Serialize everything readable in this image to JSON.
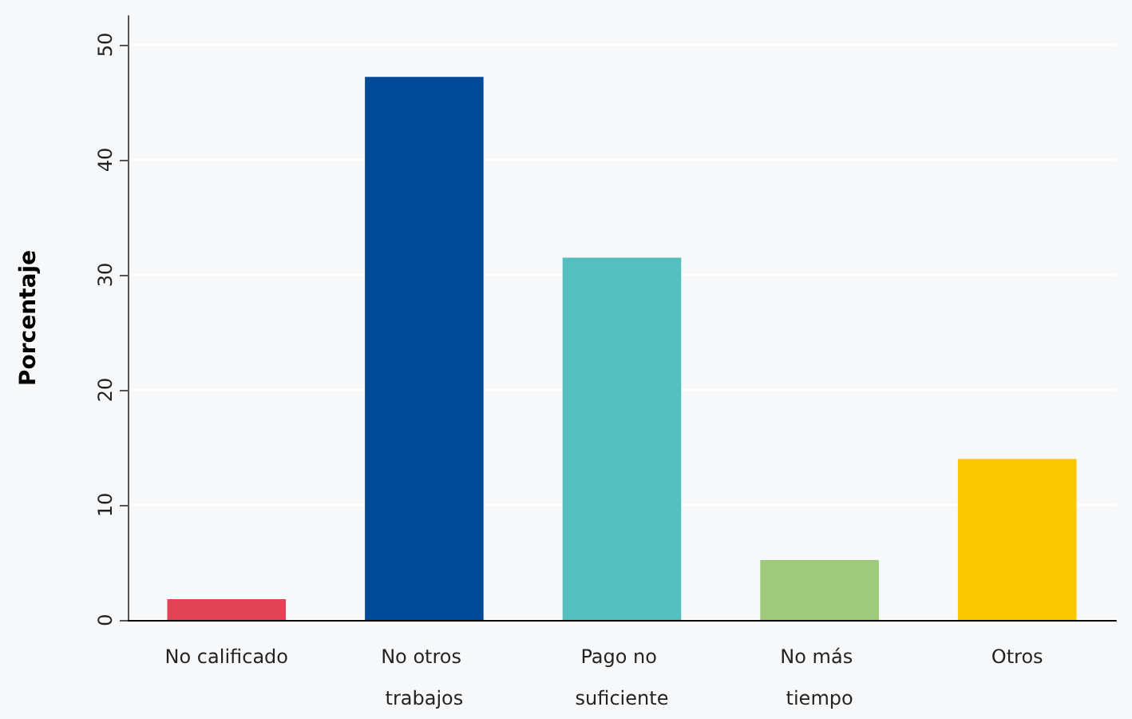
{
  "chart_data": {
    "type": "bar",
    "ylabel": "Porcentaje",
    "categories": [
      "No calificado",
      "No otros trabajos",
      "Pago no suficiente",
      "No más tiempo",
      "Otros"
    ],
    "values": [
      1.8,
      47.2,
      31.5,
      5.2,
      14.0
    ],
    "colors": [
      "#e24357",
      "#004a98",
      "#55bebe",
      "#a0ca7b",
      "#fbc800"
    ],
    "ylim": [
      0,
      52.5
    ],
    "yticks": [
      0,
      10,
      20,
      30,
      40,
      50
    ],
    "grid": "y"
  }
}
